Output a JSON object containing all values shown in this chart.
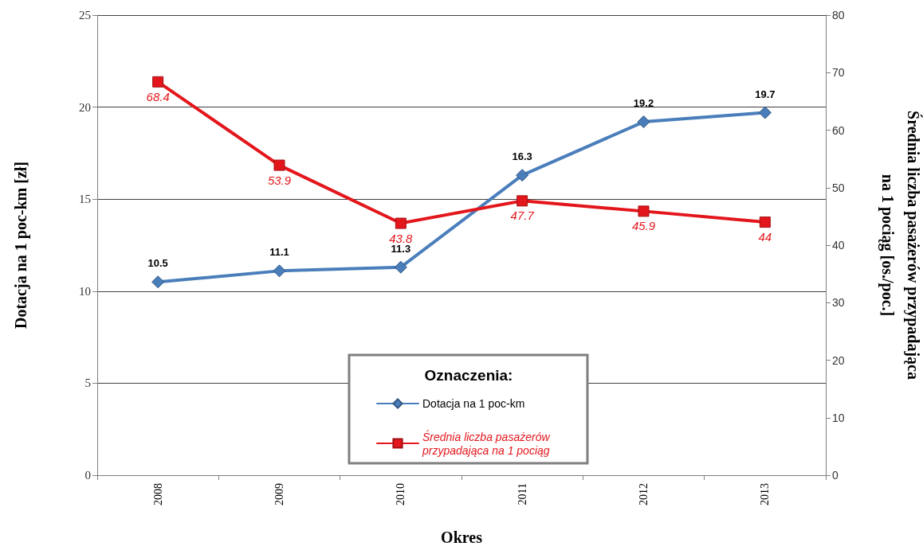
{
  "chart_data": {
    "type": "line",
    "xlabel": "Okres",
    "ylabel": "Dotacja na 1 poc-km [zł]",
    "y2label": "Średnia liczba pasażerów przypadająca na 1 pociąg [os./poc.]",
    "legend_title": "Oznaczenia:",
    "categories": [
      "2008",
      "2009",
      "2010",
      "2011",
      "2012",
      "2013"
    ],
    "series": [
      {
        "name": "Dotacja na 1 poc-km",
        "color": "#4a7ebb",
        "marker": "diamond",
        "values": [
          10.5,
          11.1,
          11.3,
          16.3,
          19.2,
          19.7
        ]
      },
      {
        "name": "Średnia liczba pasażerów przypadająca na 1 pociąg",
        "color": "#e3161c",
        "marker": "square",
        "axis": "y2",
        "values": [
          68.4,
          53.9,
          43.8,
          47.7,
          45.9,
          44
        ]
      }
    ],
    "ylim": [
      0,
      25
    ],
    "yticks": [
      0,
      5,
      10,
      15,
      20,
      25
    ],
    "y2lim": [
      0,
      80
    ],
    "y2ticks": [
      0,
      10,
      20,
      30,
      40,
      50,
      60,
      70,
      80
    ],
    "grid": "y",
    "legend": "bottom",
    "data_labels": true
  }
}
